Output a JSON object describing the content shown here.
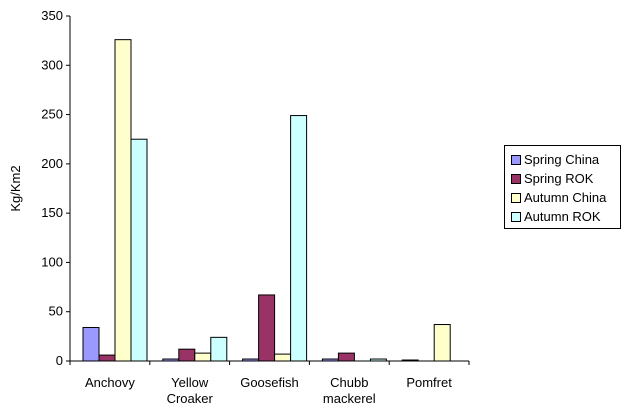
{
  "chart_data": {
    "type": "bar",
    "title": "",
    "xlabel": "",
    "ylabel": "Kg/Km2",
    "ylim": [
      0,
      350
    ],
    "yticks": [
      0,
      50,
      100,
      150,
      200,
      250,
      300,
      350
    ],
    "categories": [
      [
        "Anchovy"
      ],
      [
        "Yellow",
        "Croaker"
      ],
      [
        "Goosefish"
      ],
      [
        "Chubb",
        "mackerel"
      ],
      [
        "Pomfret"
      ]
    ],
    "series": [
      {
        "name": "Spring China",
        "color": "#9999ff",
        "values": [
          34,
          2,
          2,
          2,
          1
        ]
      },
      {
        "name": "Spring ROK",
        "color": "#993366",
        "values": [
          6,
          12,
          67,
          8,
          0
        ]
      },
      {
        "name": "Autumn China",
        "color": "#ffffcc",
        "values": [
          326,
          8,
          7,
          0,
          37
        ]
      },
      {
        "name": "Autumn ROK",
        "color": "#ccffff",
        "values": [
          225,
          24,
          249,
          2,
          0
        ]
      }
    ],
    "grid": false,
    "legend": "right"
  }
}
